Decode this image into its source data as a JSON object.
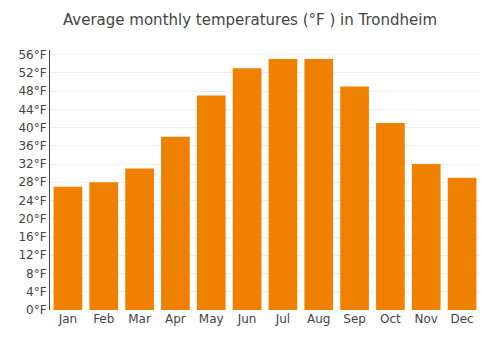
{
  "chart_data": {
    "type": "bar",
    "title": "Average monthly temperatures (°F ) in Trondheim",
    "categories": [
      "Jan",
      "Feb",
      "Mar",
      "Apr",
      "May",
      "Jun",
      "Jul",
      "Aug",
      "Sep",
      "Oct",
      "Nov",
      "Dec"
    ],
    "values": [
      27,
      28,
      31,
      38,
      47,
      53,
      55,
      55,
      49,
      41,
      32,
      29
    ],
    "color": "#F08000",
    "ylim": [
      0,
      57
    ],
    "yticks": [
      {
        "value": 0,
        "label": "0°F"
      },
      {
        "value": 4,
        "label": "4°F"
      },
      {
        "value": 8,
        "label": "8°F"
      },
      {
        "value": 12,
        "label": "12°F"
      },
      {
        "value": 16,
        "label": "16°F"
      },
      {
        "value": 20,
        "label": "20°F"
      },
      {
        "value": 24,
        "label": "24°F"
      },
      {
        "value": 28,
        "label": "28°F"
      },
      {
        "value": 32,
        "label": "32°F"
      },
      {
        "value": 36,
        "label": "36°F"
      },
      {
        "value": 40,
        "label": "40°F"
      },
      {
        "value": 44,
        "label": "44°F"
      },
      {
        "value": 48,
        "label": "48°F"
      },
      {
        "value": 52,
        "label": "52°F"
      },
      {
        "value": 56,
        "label": "56°F"
      }
    ],
    "grid": true
  }
}
